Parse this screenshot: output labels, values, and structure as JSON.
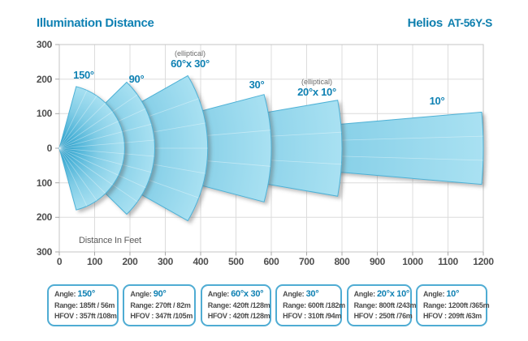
{
  "header": {
    "title": "Illumination Distance",
    "brand": "Helios",
    "model": "AT-56Y-S"
  },
  "chart_data": {
    "type": "area",
    "variant": "polar_beam_fan",
    "title": "Illumination Distance",
    "grid": true,
    "legend_position": "none",
    "x_axis": {
      "label": "Distance In Feet",
      "unit": "ft",
      "range": [
        0,
        1200
      ],
      "ticks": [
        0,
        100,
        200,
        300,
        400,
        500,
        600,
        700,
        800,
        900,
        1000,
        1100,
        1200
      ]
    },
    "y_axis": {
      "range": [
        -300,
        300
      ],
      "tick_step": 100,
      "tick_labels": [
        "300",
        "200",
        "100",
        "0",
        "100",
        "200",
        "300"
      ]
    },
    "elliptical_note": "(elliptical)",
    "fans": [
      {
        "angle_label": "150°",
        "elliptical": false,
        "angle_deg": 150,
        "radius_ft": 185,
        "range_text": "185ft / 56m",
        "hfov_text": "357ft /108m"
      },
      {
        "angle_label": "90°",
        "elliptical": false,
        "angle_deg": 90,
        "radius_ft": 270,
        "range_text": "270ft / 82m",
        "hfov_text": "347ft /105m"
      },
      {
        "angle_label": "60°x 30°",
        "elliptical": true,
        "angle_deg": 60,
        "radius_ft": 420,
        "range_text": "420ft /128m",
        "hfov_text": "420ft /128m"
      },
      {
        "angle_label": "30°",
        "elliptical": false,
        "angle_deg": 30,
        "radius_ft": 600,
        "range_text": "600ft /182m",
        "hfov_text": "310ft /94m"
      },
      {
        "angle_label": "20°x 10°",
        "elliptical": true,
        "angle_deg": 20,
        "radius_ft": 800,
        "range_text": "800ft /243m",
        "hfov_text": "250ft /76m"
      },
      {
        "angle_label": "10°",
        "elliptical": false,
        "angle_deg": 10,
        "radius_ft": 1200,
        "range_text": "1200ft /365m",
        "hfov_text": "209ft /63m"
      }
    ]
  },
  "spec_labels": {
    "angle": "Angle:",
    "range": "Range:",
    "hfov": "HFOV :"
  },
  "colors": {
    "accent_blue": "#0f81b3",
    "header_blue": "#0e7fae",
    "fan_gradient": [
      "#2196c3",
      "#4fb4d8",
      "#82cde6",
      "#a9e1f2"
    ],
    "fan_stroke": "#4db1d6",
    "box_border": "#4facd3",
    "grid_line": "#dcdcdc",
    "grid_border": "#c4c4c4",
    "tick": "#a8a8a8",
    "axis_text": "#4f4f4f",
    "note_gray": "#6a6a6a"
  }
}
